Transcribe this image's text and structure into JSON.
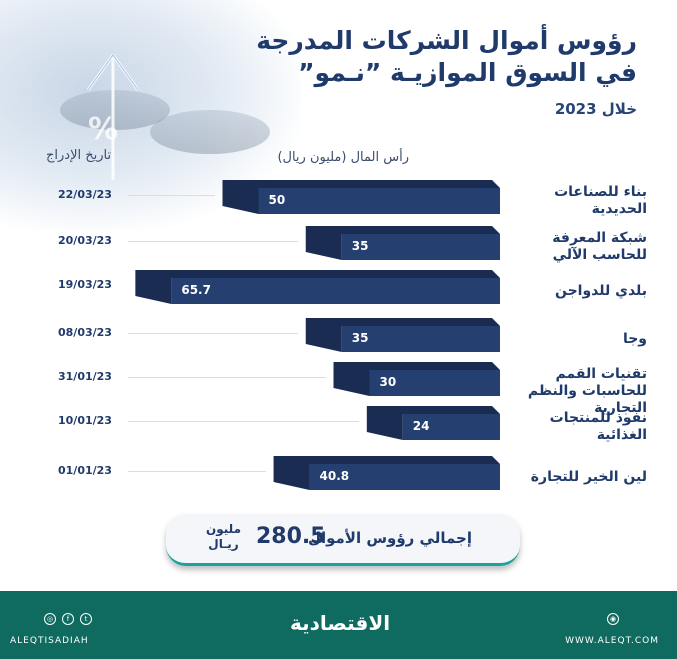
{
  "title_line1": "رؤوس أموال الشركات المدرجة",
  "title_line2": "في السوق الموازيـة ”نـمو”",
  "title_line3": "خلال 2023",
  "header_capital": "رأس المال (مليون ريال)",
  "header_date": "تاريخ الإدراج",
  "chart_data": {
    "type": "bar",
    "orientation": "horizontal",
    "categories": [
      "بناء للصناعات الحديدية",
      "شبكة المعرفة للحاسب الآلي",
      "بلدي للدواجن",
      "وجا",
      "تقنيات القمم للحاسبات والنظم التجارية",
      "نفوذ للمنتجات الغذائية",
      "لين الخير للتجارة"
    ],
    "values": [
      50,
      35,
      65.7,
      35,
      30,
      24,
      40.8
    ],
    "value_labels": [
      "50",
      "35",
      "65.7",
      "35",
      "30",
      "24",
      "40.8"
    ],
    "dates": [
      "22/03/23",
      "20/03/23",
      "19/03/23",
      "08/03/23",
      "31/01/23",
      "10/01/23",
      "01/01/23"
    ],
    "ylabel": "رأس المال (مليون ريال)"
  },
  "total": {
    "label": "إجمالي رؤوس الأموال",
    "value": "280.5",
    "unit_line1": "مليون",
    "unit_line2": "ريـال"
  },
  "footer": {
    "handle": "ALEQTISADIAH",
    "site": "WWW.ALEQT.COM",
    "logo": "الاقتصادية"
  },
  "colors": {
    "bar_front": "#253f71",
    "bar_top": "#1a2c52",
    "title": "#1f3a6b",
    "footer": "#0f6b5f"
  }
}
